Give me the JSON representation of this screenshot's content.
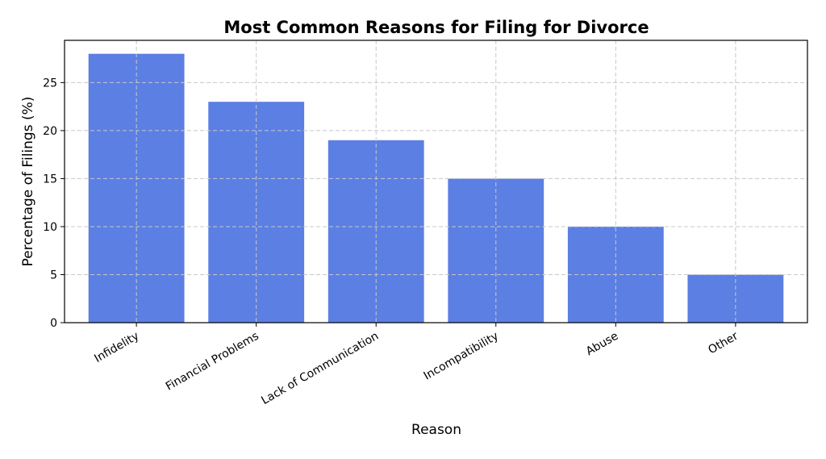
{
  "chart_data": {
    "type": "bar",
    "title": "Most Common Reasons for Filing for Divorce",
    "xlabel": "Reason",
    "ylabel": "Percentage of Filings (%)",
    "categories": [
      "Infidelity",
      "Financial Problems",
      "Lack of Communication",
      "Incompatibility",
      "Abuse",
      "Other"
    ],
    "values": [
      28,
      23,
      19,
      15,
      10,
      5
    ],
    "ylim": [
      0,
      29.4
    ],
    "yticks": [
      0,
      5,
      10,
      15,
      20,
      25
    ],
    "grid": true,
    "bar_color": "#5b7fe3"
  }
}
